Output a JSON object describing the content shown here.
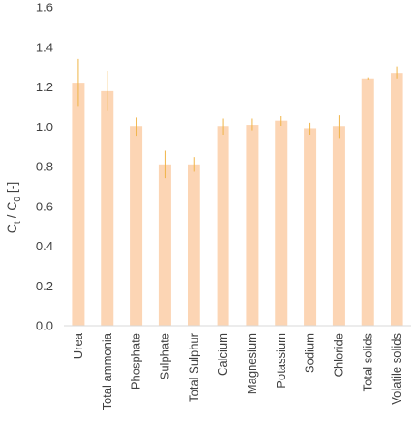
{
  "chart_data": {
    "type": "bar",
    "title": "",
    "xlabel": "",
    "ylabel": {
      "c": "C",
      "c_sub_t": "t",
      "sep": " / C",
      "c_sub_0": "0",
      "unit": " [-]"
    },
    "ylim": [
      0,
      1.6
    ],
    "yticks": [
      "0.0",
      "0.2",
      "0.4",
      "0.6",
      "0.8",
      "1.0",
      "1.2",
      "1.4",
      "1.6"
    ],
    "grid": false,
    "categories": [
      "Urea",
      "Total ammonia",
      "Phosphate",
      "Sulphate",
      "Total Sulphur",
      "Calcium",
      "Magnesium",
      "Potassium",
      "Sodium",
      "Chloride",
      "Total solids",
      "Volatile solids"
    ],
    "values": [
      1.22,
      1.18,
      1.0,
      0.81,
      0.81,
      1.0,
      1.01,
      1.03,
      0.99,
      1.0,
      1.24,
      1.27
    ],
    "errors": [
      0.12,
      0.1,
      0.045,
      0.07,
      0.035,
      0.04,
      0.03,
      0.025,
      0.03,
      0.06,
      0.005,
      0.03
    ],
    "bar_color": "#fcd5b4",
    "error_color": "#f0b447",
    "axis_color": "#d9d9d9",
    "text_color": "#404040"
  }
}
